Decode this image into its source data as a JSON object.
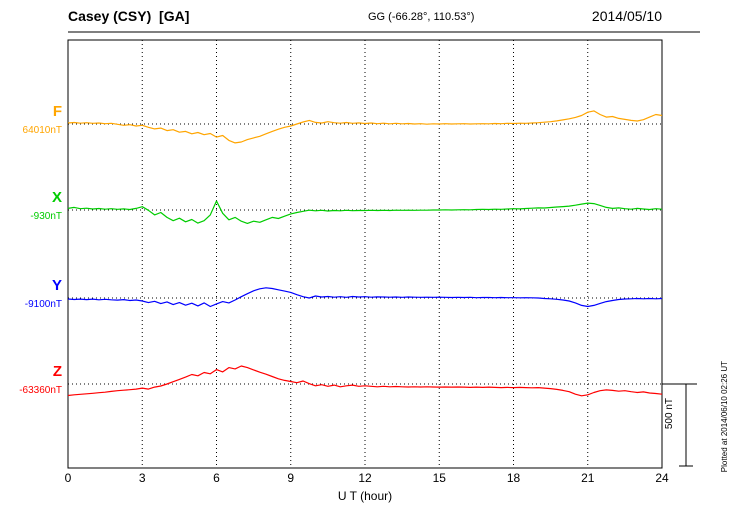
{
  "header": {
    "station": "Casey (CSY)  [GA]",
    "coordinates": "GG (-66.28°, 110.53°)",
    "date": "2014/05/10"
  },
  "axis": {
    "xlabel": "U T (hour)"
  },
  "scale_bar": {
    "label": "500 nT"
  },
  "plotted_note": "Plotted at 2014/06/10 02:26 UT",
  "chart_data": {
    "type": "line",
    "title": "Casey (CSY) [GA] magnetogram 2014/05/10",
    "xlabel": "U T (hour)",
    "x_range": [
      0,
      24
    ],
    "x_ticks": [
      0,
      3,
      6,
      9,
      12,
      15,
      18,
      21,
      24
    ],
    "sample_step_hours": 0.25,
    "scale_bar_nT": 500,
    "grid": "dotted vertical lines every 3 hours; dotted horizontal baseline per channel",
    "legend_position": "left channel labels",
    "series": [
      {
        "name": "F",
        "baseline_label": "64010nT",
        "baseline_nT": 64010,
        "color": "#ffa500",
        "units": "nT deviation from baseline",
        "values": [
          6,
          9,
          5,
          8,
          4,
          6,
          2,
          4,
          -2,
          -8,
          -4,
          -12,
          -8,
          -20,
          -30,
          -25,
          -40,
          -35,
          -50,
          -45,
          -60,
          -52,
          -65,
          -58,
          -80,
          -70,
          -100,
          -115,
          -110,
          -95,
          -85,
          -75,
          -60,
          -45,
          -32,
          -20,
          -12,
          0,
          12,
          22,
          10,
          6,
          14,
          8,
          5,
          9,
          4,
          7,
          3,
          6,
          2,
          5,
          1,
          4,
          1,
          3,
          0,
          2,
          -1,
          1,
          0,
          2,
          0,
          1,
          2,
          0,
          1,
          2,
          1,
          3,
          2,
          4,
          3,
          5,
          4,
          6,
          8,
          11,
          14,
          19,
          25,
          32,
          40,
          52,
          72,
          80,
          58,
          42,
          46,
          34,
          28,
          22,
          18,
          26,
          42,
          58,
          52
        ]
      },
      {
        "name": "X",
        "baseline_label": "-930nT",
        "baseline_nT": -930,
        "color": "#00cc00",
        "units": "nT deviation from baseline",
        "values": [
          10,
          16,
          8,
          11,
          6,
          9,
          5,
          8,
          4,
          7,
          3,
          10,
          20,
          -2,
          -30,
          -15,
          -45,
          -65,
          -50,
          -72,
          -58,
          -80,
          -65,
          -30,
          55,
          -20,
          -60,
          -45,
          -68,
          -82,
          -68,
          -75,
          -60,
          -45,
          -52,
          -38,
          -24,
          -15,
          -8,
          -1,
          -5,
          -2,
          -6,
          -3,
          -5,
          -2,
          -4,
          -3,
          -3,
          -2,
          -3,
          -2,
          -3,
          -1,
          -2,
          -1,
          -2,
          -1,
          -1,
          0,
          0,
          1,
          0,
          1,
          2,
          1,
          3,
          4,
          3,
          5,
          4,
          6,
          8,
          7,
          9,
          11,
          13,
          12,
          15,
          18,
          21,
          24,
          29,
          36,
          42,
          39,
          28,
          16,
          10,
          13,
          8,
          5,
          10,
          6,
          3,
          8,
          5
        ]
      },
      {
        "name": "Y",
        "baseline_label": "-9100nT",
        "baseline_nT": -9100,
        "color": "#0000ff",
        "units": "nT deviation from baseline",
        "values": [
          -6,
          -9,
          -7,
          -10,
          -7,
          -11,
          -8,
          -11,
          -13,
          -10,
          -15,
          -12,
          -18,
          -28,
          -20,
          -34,
          -24,
          -40,
          -28,
          -44,
          -32,
          -48,
          -30,
          -52,
          -36,
          -22,
          -30,
          -12,
          8,
          26,
          44,
          56,
          62,
          58,
          50,
          42,
          34,
          20,
          8,
          0,
          12,
          6,
          9,
          5,
          8,
          4,
          9,
          6,
          8,
          5,
          7,
          6,
          5,
          6,
          4,
          6,
          5,
          4,
          5,
          4,
          5,
          4,
          3,
          4,
          3,
          4,
          2,
          3,
          3,
          2,
          3,
          2,
          2,
          1,
          2,
          1,
          0,
          -3,
          -5,
          -8,
          -12,
          -18,
          -30,
          -45,
          -52,
          -45,
          -33,
          -22,
          -15,
          -9,
          -6,
          -5,
          -3,
          -5,
          -3,
          -5,
          -3
        ]
      },
      {
        "name": "Z",
        "baseline_label": "-63360nT",
        "baseline_nT": -63360,
        "color": "#ff0000",
        "units": "nT deviation from baseline",
        "values": [
          -70,
          -66,
          -63,
          -60,
          -57,
          -53,
          -50,
          -45,
          -41,
          -38,
          -35,
          -31,
          -25,
          -31,
          -19,
          -12,
          0,
          14,
          28,
          42,
          58,
          50,
          70,
          62,
          88,
          74,
          100,
          92,
          110,
          100,
          86,
          72,
          60,
          46,
          32,
          22,
          15,
          8,
          18,
          2,
          -11,
          -4,
          -14,
          -7,
          -17,
          -11,
          -7,
          -14,
          -11,
          -14,
          -17,
          -14,
          -17,
          -15,
          -17,
          -18,
          -17,
          -18,
          -17,
          -18,
          -19,
          -18,
          -19,
          -18,
          -19,
          -21,
          -19,
          -21,
          -19,
          -21,
          -22,
          -21,
          -22,
          -21,
          -22,
          -23,
          -22,
          -25,
          -28,
          -33,
          -39,
          -47,
          -62,
          -72,
          -66,
          -52,
          -41,
          -36,
          -39,
          -44,
          -41,
          -47,
          -52,
          -48,
          -55,
          -58,
          -62
        ]
      }
    ]
  }
}
